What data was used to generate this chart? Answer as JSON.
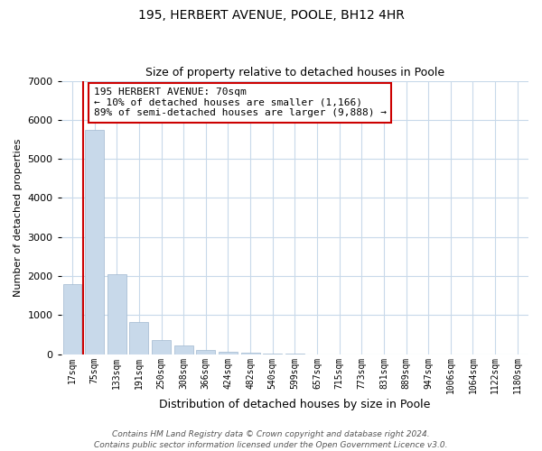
{
  "title": "195, HERBERT AVENUE, POOLE, BH12 4HR",
  "subtitle": "Size of property relative to detached houses in Poole",
  "xlabel": "Distribution of detached houses by size in Poole",
  "ylabel": "Number of detached properties",
  "bar_labels": [
    "17sqm",
    "75sqm",
    "133sqm",
    "191sqm",
    "250sqm",
    "308sqm",
    "366sqm",
    "424sqm",
    "482sqm",
    "540sqm",
    "599sqm",
    "657sqm",
    "715sqm",
    "773sqm",
    "831sqm",
    "889sqm",
    "947sqm",
    "1006sqm",
    "1064sqm",
    "1122sqm",
    "1180sqm"
  ],
  "bar_values": [
    1780,
    5750,
    2050,
    820,
    365,
    230,
    110,
    60,
    30,
    10,
    5,
    0,
    0,
    0,
    0,
    0,
    0,
    0,
    0,
    0,
    0
  ],
  "bar_color": "#c8d9ea",
  "bar_edge_color": "#a0b8d0",
  "marker_color": "#cc0000",
  "ylim": [
    0,
    7000
  ],
  "annotation_text": "195 HERBERT AVENUE: 70sqm\n← 10% of detached houses are smaller (1,166)\n89% of semi-detached houses are larger (9,888) →",
  "annotation_box_color": "#ffffff",
  "annotation_box_edge": "#cc0000",
  "footer_line1": "Contains HM Land Registry data © Crown copyright and database right 2024.",
  "footer_line2": "Contains public sector information licensed under the Open Government Licence v3.0.",
  "bg_color": "#ffffff",
  "grid_color": "#c8d9ea",
  "title_fontsize": 10,
  "subtitle_fontsize": 9,
  "ylabel_fontsize": 8,
  "xlabel_fontsize": 9,
  "tick_fontsize": 7,
  "annot_fontsize": 8,
  "footer_fontsize": 6.5
}
